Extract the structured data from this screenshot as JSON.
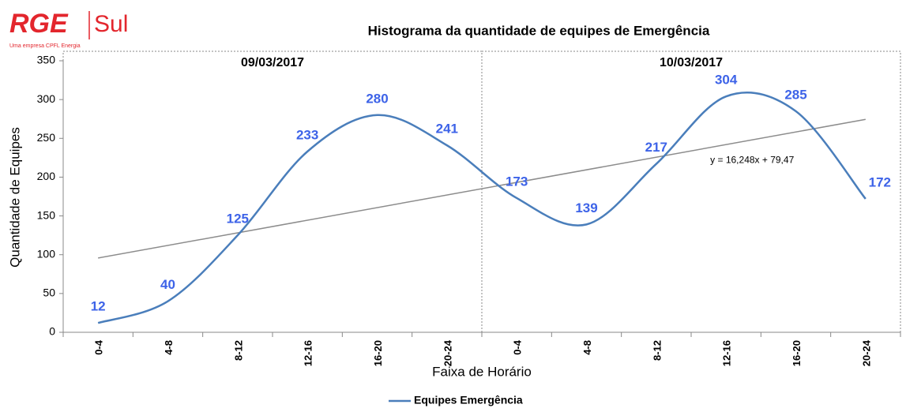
{
  "logo": {
    "brand": "RGE",
    "region": "Sul",
    "tagline": "Uma empresa CPFL Energia"
  },
  "chart_data": {
    "type": "line",
    "title": "Histograma da quantidade de equipes de Emergência",
    "xlabel": "Faixa de Horário",
    "ylabel": "Quantidade de Equipes",
    "groups": [
      "09/03/2017",
      "10/03/2017"
    ],
    "categories": [
      "0-4",
      "4-8",
      "8-12",
      "12-16",
      "16-20",
      "20-24",
      "0-4",
      "4-8",
      "8-12",
      "12-16",
      "16-20",
      "20-24"
    ],
    "series": [
      {
        "name": "Equipes Emergência",
        "color": "#4a7ebb",
        "values": [
          12,
          40,
          125,
          233,
          280,
          241,
          173,
          139,
          217,
          304,
          285,
          172
        ]
      }
    ],
    "trendline": {
      "label": "y = 16,248x + 79,47",
      "slope": 16.248,
      "intercept": 79.47,
      "color": "#8c8c8c"
    },
    "label_color": "#3d63e8",
    "ylim": [
      0,
      350
    ],
    "yticks": [
      0,
      50,
      100,
      150,
      200,
      250,
      300,
      350
    ]
  }
}
